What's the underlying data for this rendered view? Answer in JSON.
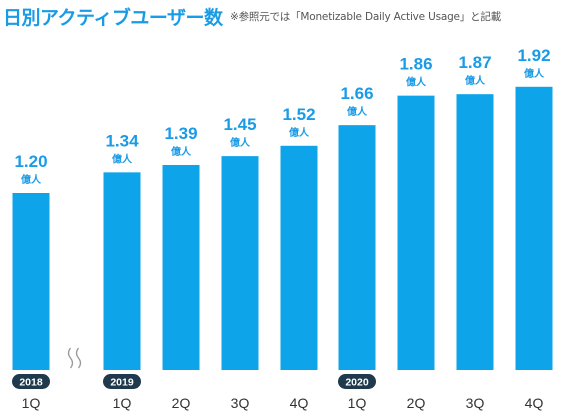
{
  "title": "日別アクティブユーザー数",
  "note": "※参照元では「Monetizable Daily Active Usage」と記載",
  "colors": {
    "bar": "#0ea4ea",
    "accent": "#1a9be6",
    "year_pill": "#1f3a4d",
    "axis_text": "#333333"
  },
  "chart_data": {
    "type": "bar",
    "title": "日別アクティブユーザー数",
    "unit": "億人",
    "categories": [
      "1Q",
      "1Q",
      "2Q",
      "3Q",
      "4Q",
      "1Q",
      "2Q",
      "3Q",
      "4Q"
    ],
    "years": [
      {
        "label": "2018",
        "index": 0
      },
      {
        "label": "2019",
        "index": 1
      },
      {
        "label": "2020",
        "index": 5
      }
    ],
    "values": [
      1.2,
      1.34,
      1.39,
      1.45,
      1.52,
      1.66,
      1.86,
      1.87,
      1.92
    ],
    "value_labels": [
      "1.20",
      "1.34",
      "1.39",
      "1.45",
      "1.52",
      "1.66",
      "1.86",
      "1.87",
      "1.92"
    ],
    "axis_break_after_index": 0,
    "ylim": [
      0,
      2.0
    ],
    "grid": false,
    "legend": "none"
  }
}
